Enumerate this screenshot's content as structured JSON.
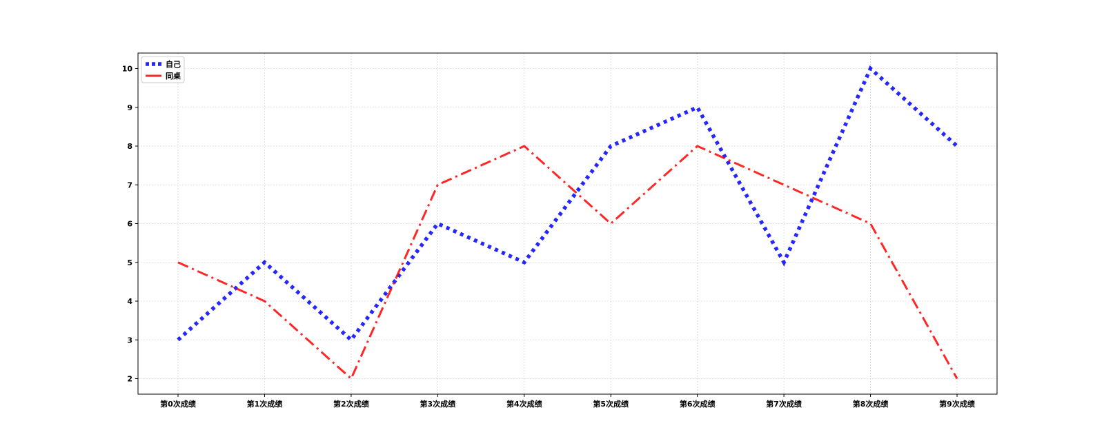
{
  "chart_data": {
    "type": "line",
    "title": "",
    "xlabel": "",
    "ylabel": "",
    "categories": [
      "第0次成绩",
      "第1次成绩",
      "第2次成绩",
      "第3次成绩",
      "第4次成绩",
      "第5次成绩",
      "第6次成绩",
      "第7次成绩",
      "第8次成绩",
      "第9次成绩"
    ],
    "yticks": [
      2,
      3,
      4,
      5,
      6,
      7,
      8,
      9,
      10
    ],
    "ylim": [
      1.6,
      10.4
    ],
    "grid": true,
    "legend_position": "top-left",
    "series": [
      {
        "name": "自己",
        "values": [
          3,
          5,
          3,
          6,
          5,
          8,
          9,
          5,
          10,
          8
        ],
        "color": "#0000ff",
        "line_style": "dotted"
      },
      {
        "name": "同桌",
        "values": [
          5,
          4,
          2,
          7,
          8,
          6,
          8,
          7,
          6,
          2
        ],
        "color": "#ff0000",
        "line_style": "dash-dot"
      }
    ]
  }
}
